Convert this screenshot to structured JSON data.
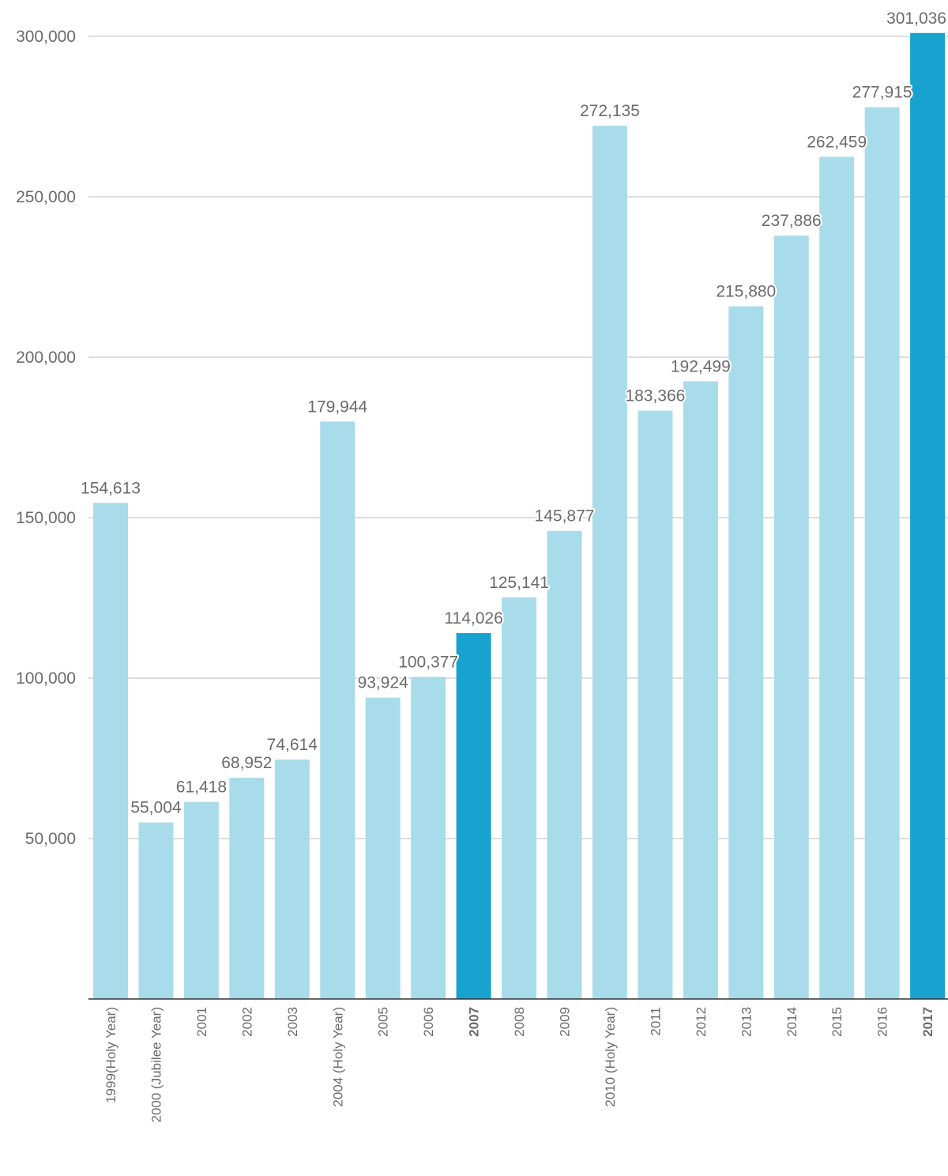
{
  "chart_data": {
    "type": "bar",
    "title": "",
    "xlabel": "",
    "ylabel": "",
    "ylim": [
      0,
      300000
    ],
    "yticks": [
      50000,
      100000,
      150000,
      200000,
      250000,
      300000
    ],
    "ytick_labels": [
      "50,000",
      "100,000",
      "150,000",
      "200,000",
      "250,000",
      "300,000"
    ],
    "grid": true,
    "categories": [
      "1999(Holy Year)",
      "2000 (Jubilee Year)",
      "2001",
      "2002",
      "2003",
      "2004 (Holy Year)",
      "2005",
      "2006",
      "2007",
      "2008",
      "2009",
      "2010 (Holy Year)",
      "2011",
      "2012",
      "2013",
      "2014",
      "2015",
      "2016",
      "2017"
    ],
    "values": [
      154613,
      55004,
      61418,
      68952,
      74614,
      179944,
      93924,
      100377,
      114026,
      125141,
      145877,
      272135,
      183366,
      192499,
      215880,
      237886,
      262459,
      277915,
      301036
    ],
    "value_labels": [
      "154,613",
      "55,004",
      "61,418",
      "68,952",
      "74,614",
      "179,944",
      "93,924",
      "100,377",
      "114,026",
      "125,141",
      "145,877",
      "272,135",
      "183,366",
      "192,499",
      "215,880",
      "237,886",
      "262,459",
      "277,915",
      "301,036"
    ],
    "highlighted": [
      "2007",
      "2017"
    ],
    "colors": {
      "bar": "#a9dcea",
      "highlight": "#18a2cf"
    }
  }
}
